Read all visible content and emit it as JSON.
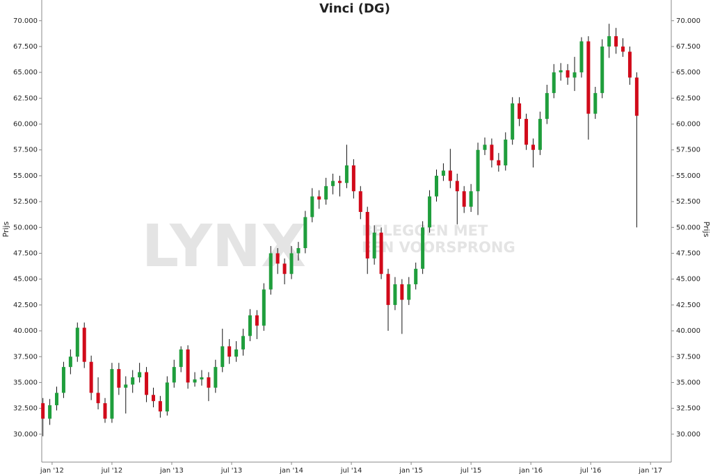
{
  "chart_data": {
    "type": "candlestick",
    "title": "Vinci (DG)",
    "y_label": "Prijs",
    "watermark": [
      "LYNX",
      "BELEGGEN MET",
      "EEN VOORSPRONG"
    ],
    "up_color": "#1f9e3c",
    "down_color": "#d10a1a",
    "xlim": [
      -4.5,
      269
    ],
    "ylim": [
      27.3,
      72.0
    ],
    "xticks": [
      {
        "value": 0,
        "label": "jan '12"
      },
      {
        "value": 26,
        "label": "jul '12"
      },
      {
        "value": 52,
        "label": "jan '13"
      },
      {
        "value": 78,
        "label": "jul '13"
      },
      {
        "value": 104,
        "label": "jan '14"
      },
      {
        "value": 130,
        "label": "jul '14"
      },
      {
        "value": 156,
        "label": "jan '15"
      },
      {
        "value": 182,
        "label": "jul '15"
      },
      {
        "value": 208,
        "label": "jan '16"
      },
      {
        "value": 234,
        "label": "jul '16"
      },
      {
        "value": 260,
        "label": "jan '17"
      }
    ],
    "yticks": [
      {
        "value": 30,
        "label": "30.000"
      },
      {
        "value": 32.5,
        "label": "32.500"
      },
      {
        "value": 35,
        "label": "35.000"
      },
      {
        "value": 37.5,
        "label": "37.500"
      },
      {
        "value": 40,
        "label": "40.000"
      },
      {
        "value": 42.5,
        "label": "42.500"
      },
      {
        "value": 45,
        "label": "45.000"
      },
      {
        "value": 47.5,
        "label": "47.500"
      },
      {
        "value": 50,
        "label": "50.000"
      },
      {
        "value": 52.5,
        "label": "52.500"
      },
      {
        "value": 55,
        "label": "55.000"
      },
      {
        "value": 57.5,
        "label": "57.500"
      },
      {
        "value": 60,
        "label": "60.000"
      },
      {
        "value": 62.5,
        "label": "62.500"
      },
      {
        "value": 65,
        "label": "65.000"
      },
      {
        "value": 67.5,
        "label": "67.500"
      },
      {
        "value": 70,
        "label": "70.000"
      }
    ],
    "x": [
      -4,
      -1,
      2,
      5,
      8,
      11,
      14,
      17,
      20,
      23,
      26,
      29,
      32,
      35,
      38,
      41,
      44,
      47,
      50,
      53,
      56,
      59,
      62,
      65,
      68,
      71,
      74,
      77,
      80,
      83,
      86,
      89,
      92,
      95,
      98,
      101,
      104,
      107,
      110,
      113,
      116,
      119,
      122,
      125,
      128,
      131,
      134,
      137,
      140,
      143,
      146,
      149,
      152,
      155,
      158,
      161,
      164,
      167,
      170,
      173,
      176,
      179,
      182,
      185,
      188,
      191,
      194,
      197,
      200,
      203,
      206,
      209,
      212,
      215,
      218,
      221,
      224,
      227,
      230,
      233,
      236,
      239,
      242,
      245,
      248,
      251,
      254
    ],
    "candles": [
      [
        33,
        33.5,
        29.8,
        31.5
      ],
      [
        31.5,
        33.4,
        30.9,
        32.8
      ],
      [
        32.8,
        34.6,
        32.3,
        34
      ],
      [
        34,
        37,
        33.5,
        36.5
      ],
      [
        36.5,
        38.2,
        35.8,
        37.5
      ],
      [
        37.5,
        40.8,
        37,
        40.3
      ],
      [
        40.3,
        40.8,
        36.4,
        37
      ],
      [
        37,
        37.6,
        33.3,
        34
      ],
      [
        34,
        35.5,
        32.4,
        33
      ],
      [
        33,
        33.5,
        31.1,
        31.5
      ],
      [
        31.5,
        36.9,
        31.1,
        36.3
      ],
      [
        36.3,
        36.9,
        33.8,
        34.5
      ],
      [
        34.5,
        35.6,
        32,
        34.8
      ],
      [
        34.8,
        36.2,
        34,
        35.5
      ],
      [
        35.5,
        36.9,
        35,
        36
      ],
      [
        36,
        36.5,
        33.1,
        33.8
      ],
      [
        33.8,
        34.5,
        32.6,
        33.2
      ],
      [
        33.2,
        33.7,
        31.6,
        32.2
      ],
      [
        32.2,
        35.6,
        31.8,
        35
      ],
      [
        35,
        37.2,
        34.5,
        36.5
      ],
      [
        36.5,
        38.5,
        36,
        38.2
      ],
      [
        38.2,
        38.6,
        34.4,
        35
      ],
      [
        35,
        36,
        34.6,
        35.3
      ],
      [
        35.3,
        36.2,
        34.7,
        35.5
      ],
      [
        35.5,
        36,
        33.2,
        34.5
      ],
      [
        34.5,
        37.2,
        34,
        36.5
      ],
      [
        36.5,
        40.2,
        36,
        38.5
      ],
      [
        38.5,
        39.2,
        36.8,
        37.5
      ],
      [
        37.5,
        39,
        37,
        38.2
      ],
      [
        38.2,
        40.2,
        37.6,
        39.5
      ],
      [
        39.5,
        42.1,
        39,
        41.5
      ],
      [
        41.5,
        42,
        39.2,
        40.5
      ],
      [
        40.5,
        44.6,
        40,
        44
      ],
      [
        44,
        48.2,
        43.5,
        47.5
      ],
      [
        47.5,
        48,
        45.5,
        46.5
      ],
      [
        46.5,
        47,
        44.5,
        45.5
      ],
      [
        45.5,
        48.2,
        45,
        47.5
      ],
      [
        47.5,
        48.6,
        46.8,
        48
      ],
      [
        48,
        51.6,
        47.5,
        51
      ],
      [
        51,
        53.8,
        50.5,
        53
      ],
      [
        53,
        53.6,
        51.8,
        52.7
      ],
      [
        52.7,
        54.8,
        52.2,
        54
      ],
      [
        54,
        55.2,
        53.2,
        54.5
      ],
      [
        54.5,
        55,
        53,
        54.3
      ],
      [
        54.3,
        58,
        53.8,
        56
      ],
      [
        56,
        56.6,
        52.8,
        53.5
      ],
      [
        53.5,
        54,
        50.8,
        51.5
      ],
      [
        51.5,
        52,
        45.5,
        47
      ],
      [
        47,
        50.2,
        46.4,
        49.5
      ],
      [
        49.5,
        50,
        45,
        45.5
      ],
      [
        45.5,
        46,
        40,
        42.5
      ],
      [
        42.5,
        45.2,
        42,
        44.5
      ],
      [
        44.5,
        45,
        39.7,
        43
      ],
      [
        43,
        45.2,
        42.5,
        44.5
      ],
      [
        44.5,
        46.6,
        44,
        46
      ],
      [
        46,
        50.6,
        45.5,
        50
      ],
      [
        50,
        53.6,
        49.5,
        53
      ],
      [
        53,
        55.6,
        52.5,
        55
      ],
      [
        55,
        56.2,
        54.5,
        55.5
      ],
      [
        55.5,
        57.6,
        53.8,
        54.5
      ],
      [
        54.5,
        55.2,
        50.3,
        53.5
      ],
      [
        53.5,
        54,
        51.4,
        52
      ],
      [
        52,
        54.2,
        51.5,
        53.5
      ],
      [
        53.5,
        58.2,
        51.2,
        57.5
      ],
      [
        57.5,
        58.7,
        57,
        58
      ],
      [
        58,
        58.6,
        55.8,
        56.5
      ],
      [
        56.5,
        57.2,
        55.4,
        56
      ],
      [
        56,
        59.2,
        55.5,
        58.5
      ],
      [
        58.5,
        62.6,
        58,
        62
      ],
      [
        62,
        62.6,
        59.8,
        60.5
      ],
      [
        60.5,
        61,
        57.5,
        58
      ],
      [
        58,
        58.6,
        55.8,
        57.5
      ],
      [
        57.5,
        61.2,
        57,
        60.5
      ],
      [
        60.5,
        63.8,
        60,
        63
      ],
      [
        63,
        65.8,
        62.5,
        65
      ],
      [
        65,
        65.9,
        64.2,
        65.2
      ],
      [
        65.2,
        65.8,
        63.8,
        64.5
      ],
      [
        64.5,
        66.5,
        63.2,
        65
      ],
      [
        65,
        68.4,
        64.5,
        68
      ],
      [
        68,
        68.5,
        58.5,
        61
      ],
      [
        61,
        63.6,
        60.5,
        63
      ],
      [
        63,
        68.2,
        62.5,
        67.5
      ],
      [
        67.5,
        69.7,
        66.4,
        68.5
      ],
      [
        68.5,
        69.3,
        66.8,
        67.5
      ],
      [
        67.5,
        68.3,
        66.5,
        67
      ],
      [
        67,
        67.5,
        63.8,
        64.5
      ],
      [
        64.5,
        65,
        50,
        60.8
      ]
    ]
  }
}
